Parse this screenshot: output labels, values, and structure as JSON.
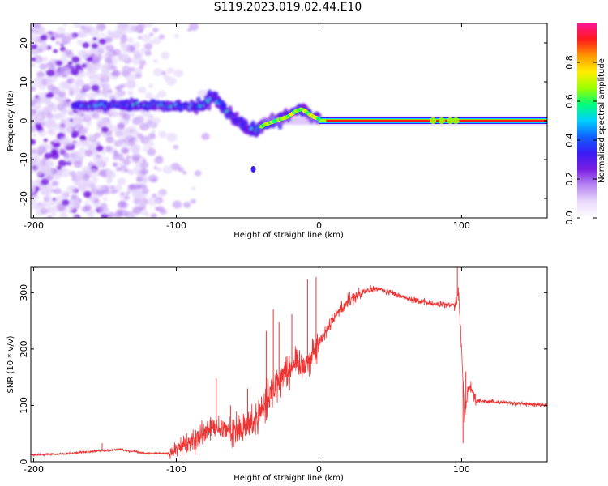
{
  "title": "S119.2023.019.02.44.E10",
  "chart_data": [
    {
      "type": "heatmap",
      "xlabel": "Height of straight line (km)",
      "ylabel": "Frequency (Hz)",
      "xlim": [
        -202,
        160
      ],
      "ylim": [
        -25,
        25
      ],
      "xticks": [
        -200,
        -100,
        0,
        100
      ],
      "yticks": [
        -20,
        -10,
        0,
        10,
        20
      ],
      "colorbar": {
        "label": "Normalized spectral amplitude",
        "range": [
          0,
          1
        ],
        "ticks": [
          "0.0",
          "0.2",
          "0.4",
          "0.6",
          "0.8"
        ],
        "colormap": [
          "#ffffff",
          "#e9d9fb",
          "#b888f2",
          "#7a1ee3",
          "#3a1cf5",
          "#1060ff",
          "#00d0ff",
          "#00ff7a",
          "#9aff00",
          "#ffee00",
          "#ff9900",
          "#ff1a1a",
          "#ff1493"
        ]
      },
      "ridge": {
        "x": [
          -170,
          -150,
          -130,
          -110,
          -95,
          -82,
          -74,
          -66,
          -58,
          -50,
          -44,
          -38,
          -30,
          -22,
          -16,
          -12,
          -8,
          -4,
          0,
          10,
          30,
          60,
          90,
          100,
          130,
          160
        ],
        "frequency": [
          4,
          4,
          4,
          4,
          3.6,
          3.6,
          6,
          3,
          0,
          -2,
          -2.5,
          -1,
          0,
          1,
          2.5,
          3,
          2,
          1,
          0.5,
          0,
          0,
          0,
          0,
          0,
          0,
          0
        ]
      },
      "isolated_blob": {
        "x": -46,
        "frequency": -12.5
      }
    },
    {
      "type": "line",
      "xlabel": "Height of straight line (km)",
      "ylabel": "SNR (10 * v/v)",
      "xlim": [
        -202,
        160
      ],
      "ylim": [
        0,
        345
      ],
      "xticks": [
        -200,
        -100,
        0,
        100
      ],
      "yticks": [
        0,
        100,
        200,
        300
      ],
      "color": "#ee3333",
      "x": [
        -202,
        -180,
        -160,
        -140,
        -120,
        -105,
        -95,
        -85,
        -75,
        -65,
        -55,
        -45,
        -35,
        -25,
        -15,
        -8,
        0,
        10,
        20,
        30,
        40,
        50,
        60,
        70,
        80,
        90,
        95,
        98,
        100,
        102,
        105,
        110,
        130,
        160
      ],
      "y": [
        12,
        14,
        18,
        22,
        15,
        15,
        28,
        40,
        60,
        55,
        55,
        75,
        115,
        160,
        175,
        175,
        210,
        255,
        285,
        300,
        308,
        300,
        292,
        285,
        280,
        278,
        280,
        300,
        200,
        80,
        140,
        108,
        105,
        100
      ],
      "spikes": [
        {
          "x": -152,
          "y": 33
        },
        {
          "x": -72,
          "y": 148
        },
        {
          "x": -62,
          "y": 100
        },
        {
          "x": -50,
          "y": 130
        },
        {
          "x": -37,
          "y": 232
        },
        {
          "x": -32,
          "y": 270
        },
        {
          "x": -28,
          "y": 248
        },
        {
          "x": -19,
          "y": 262
        },
        {
          "x": -8,
          "y": 324
        },
        {
          "x": -2,
          "y": 328
        },
        {
          "x": 0,
          "y": 200
        },
        {
          "x": 97,
          "y": 345
        },
        {
          "x": 101,
          "y": 33
        },
        {
          "x": 103,
          "y": 160
        }
      ]
    }
  ]
}
